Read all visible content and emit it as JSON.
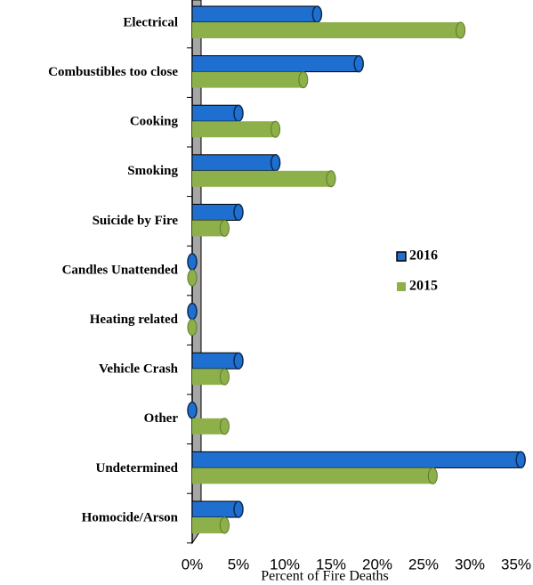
{
  "chart_data": {
    "type": "bar",
    "orientation": "horizontal",
    "x_label": "Percent of Fire Deaths",
    "categories": [
      "Electrical",
      "Combustibles too close",
      "Cooking",
      "Smoking",
      "Suicide by Fire",
      "Candles Unattended",
      "Heating related",
      "Vehicle Crash",
      "Other",
      "Undetermined",
      "Homocide/Arson"
    ],
    "series": [
      {
        "name": "2016",
        "color": "#1f6fd0",
        "values": [
          13.5,
          18,
          5,
          9,
          5,
          0,
          0,
          5,
          0,
          35.5,
          5
        ]
      },
      {
        "name": "2015",
        "color": "#8db04a",
        "values": [
          29,
          12,
          9,
          15,
          3.5,
          0,
          0,
          3.5,
          3.5,
          26,
          3.5
        ]
      }
    ],
    "xlim": [
      0,
      35
    ],
    "xticks": [
      {
        "value": 0,
        "label": "0%"
      },
      {
        "value": 5,
        "label": "5%"
      },
      {
        "value": 10,
        "label": "10%"
      },
      {
        "value": 15,
        "label": "15%"
      },
      {
        "value": 20,
        "label": "20%"
      },
      {
        "value": 25,
        "label": "25%"
      },
      {
        "value": 30,
        "label": "30%"
      },
      {
        "value": 35,
        "label": "35%"
      }
    ],
    "legend": "right",
    "grid": false
  }
}
